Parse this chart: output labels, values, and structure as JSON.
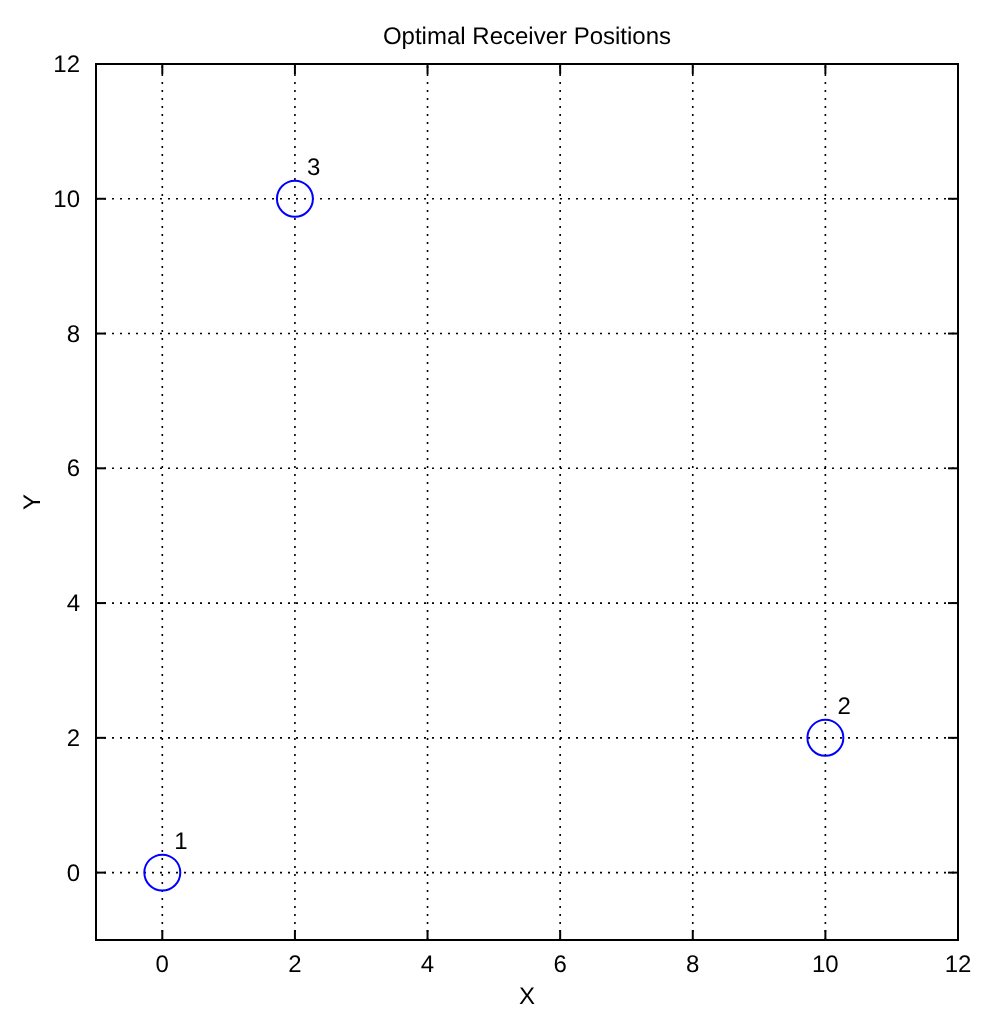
{
  "chart_data": {
    "type": "scatter",
    "title": "Optimal Receiver Positions",
    "xlabel": "X",
    "ylabel": "Y",
    "x": [
      0,
      10,
      2
    ],
    "values": [
      0,
      2,
      10
    ],
    "color": "#0000ff",
    "marker": "circle",
    "xlim": [
      -1,
      12
    ],
    "ylim": [
      -1,
      12
    ],
    "xticks": [
      0,
      2,
      4,
      6,
      8,
      10,
      12
    ],
    "yticks": [
      0,
      2,
      4,
      6,
      8,
      10,
      12
    ],
    "grid": true,
    "line_style": "dotted",
    "annotations": [
      {
        "text": "1",
        "x": 0,
        "y": 0
      },
      {
        "text": "2",
        "x": 10,
        "y": 2
      },
      {
        "text": "3",
        "x": 2,
        "y": 10
      }
    ]
  }
}
